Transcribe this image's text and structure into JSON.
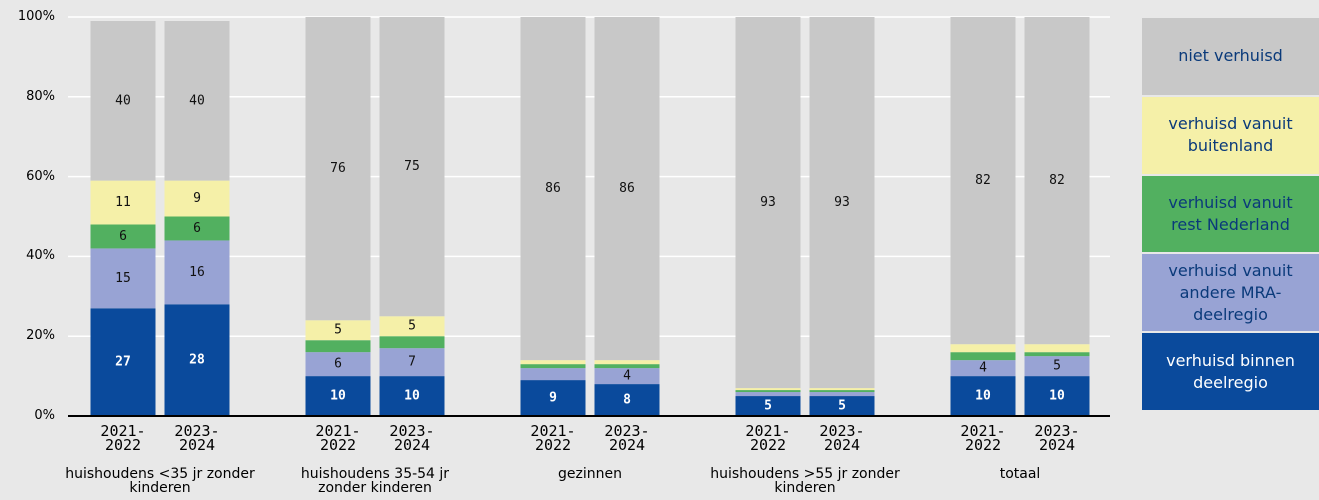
{
  "chart_data": {
    "type": "stacked_bar",
    "groups": [
      "huishoudens <35 jr zonder kinderen",
      "huishoudens 35-54 jr zonder kinderen",
      "gezinnen",
      "huishoudens >55 jr zonder kinderen",
      "totaal"
    ],
    "categories": [
      "2021-2022",
      "2023-2024",
      "2021-2022",
      "2023-2024",
      "2021-2022",
      "2023-2024",
      "2021-2022",
      "2023-2024",
      "2021-2022",
      "2023-2024"
    ],
    "series": [
      {
        "name": "verhuisd binnen deelregio",
        "color": "#0a4a9c",
        "values": [
          27,
          28,
          10,
          10,
          9,
          8,
          5,
          5,
          10,
          10
        ]
      },
      {
        "name": "verhuisd vanuit andere MRA-deelregio",
        "color": "#98a3d4",
        "values": [
          15,
          16,
          6,
          7,
          3,
          4,
          1,
          1,
          4,
          5
        ]
      },
      {
        "name": "verhuisd vanuit rest Nederland",
        "color": "#52b060",
        "values": [
          6,
          6,
          3,
          3,
          1,
          1,
          0.5,
          0.5,
          2,
          1
        ]
      },
      {
        "name": "verhuisd vanuit buitenland",
        "color": "#f5f0a8",
        "values": [
          11,
          9,
          5,
          5,
          1,
          1,
          0.5,
          0.5,
          2,
          2
        ]
      },
      {
        "name": "niet verhuisd",
        "color": "#c8c8c8",
        "values": [
          40,
          40,
          76,
          75,
          86,
          86,
          93,
          93,
          82,
          82
        ]
      }
    ],
    "ylim": [
      0,
      100
    ],
    "yticks": [
      {
        "value": 0,
        "label": "0%"
      },
      {
        "value": 20,
        "label": "20%"
      },
      {
        "value": 40,
        "label": "40%"
      },
      {
        "value": 60,
        "label": "60%"
      },
      {
        "value": 80,
        "label": "80%"
      },
      {
        "value": 100,
        "label": "100%"
      }
    ],
    "grid": true,
    "legend": "right"
  }
}
